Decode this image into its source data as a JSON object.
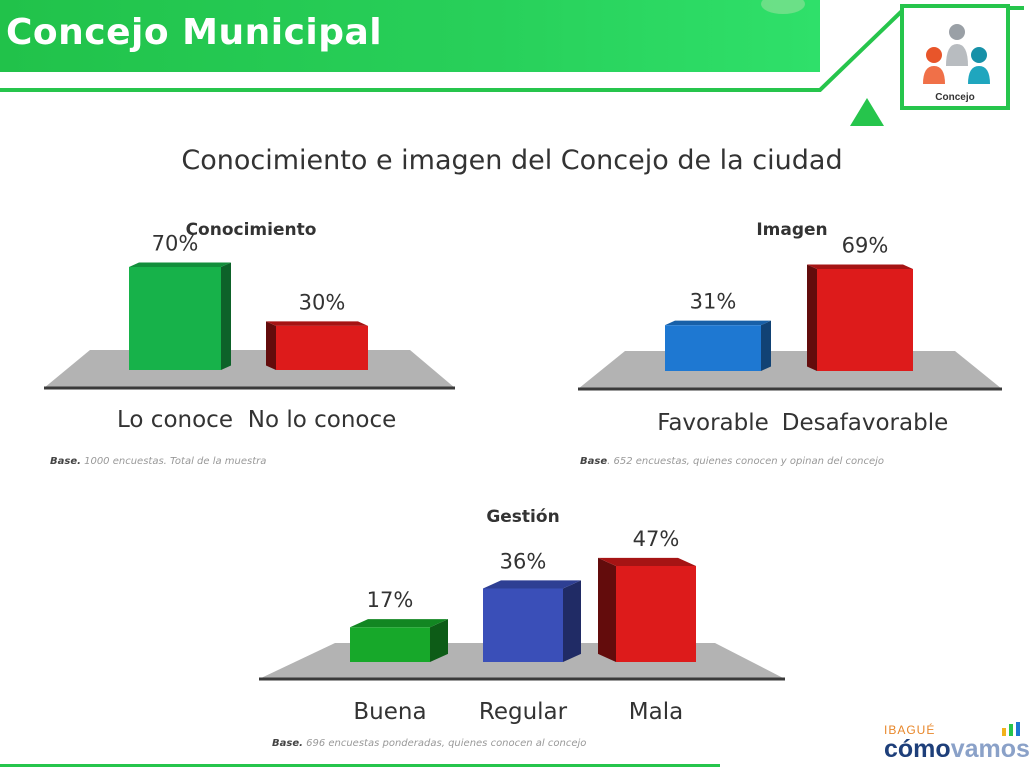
{
  "header": {
    "title": "Concejo Municipal"
  },
  "slide_title": "Conocimiento e imagen del Concejo de la ciudad",
  "logo": {
    "label": "Concejo"
  },
  "brand": {
    "city": "IBAGUÉ",
    "name_a": "cómo",
    "name_b": "vamos"
  },
  "colors": {
    "green": "#17b24a",
    "red": "#dd1b1b",
    "blue": "#1e78d2",
    "navy": "#3a4fb8",
    "header": "#26c54c"
  },
  "chart_data": [
    {
      "type": "bar",
      "title": "Conocimiento",
      "categories": [
        "Lo conoce",
        "No lo conoce"
      ],
      "values": [
        70,
        30
      ],
      "value_labels": [
        "70%",
        "30%"
      ],
      "colors": [
        "#17b24a",
        "#dd1b1b"
      ],
      "base_label": "Base.",
      "base_text": "1000 encuestas.  Total de la muestra"
    },
    {
      "type": "bar",
      "title": "Imagen",
      "categories": [
        "Favorable",
        "Desafavorable"
      ],
      "values": [
        31,
        69
      ],
      "value_labels": [
        "31%",
        "69%"
      ],
      "colors": [
        "#1e78d2",
        "#dd1b1b"
      ],
      "base_label": "Base",
      "base_text": ". 652 encuestas, quienes conocen y opinan del concejo"
    },
    {
      "type": "bar",
      "title": "Gestión",
      "categories": [
        "Buena",
        "Regular",
        "Mala"
      ],
      "values": [
        17,
        36,
        47
      ],
      "value_labels": [
        "17%",
        "36%",
        "47%"
      ],
      "colors": [
        "#17a82a",
        "#3a4fb8",
        "#dd1b1b"
      ],
      "base_label": "Base.",
      "base_text": "  696 encuestas ponderadas, quienes conocen al concejo"
    }
  ]
}
